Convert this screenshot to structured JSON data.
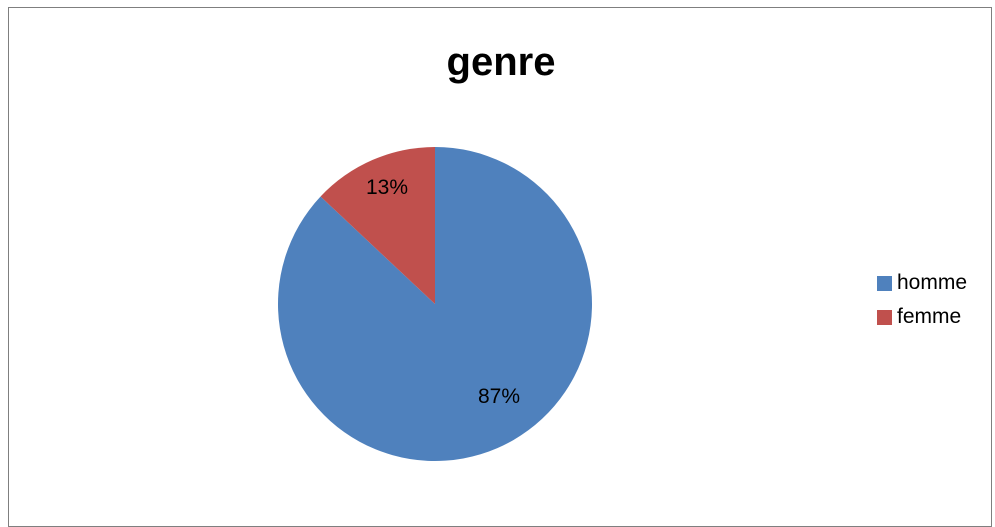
{
  "chart_data": {
    "type": "pie",
    "title": "genre",
    "categories": [
      "homme",
      "femme"
    ],
    "values": [
      87,
      13
    ],
    "labels": [
      "87%",
      "13%"
    ],
    "colors": [
      "#4f81bd",
      "#c0504d"
    ],
    "legend": "right"
  }
}
